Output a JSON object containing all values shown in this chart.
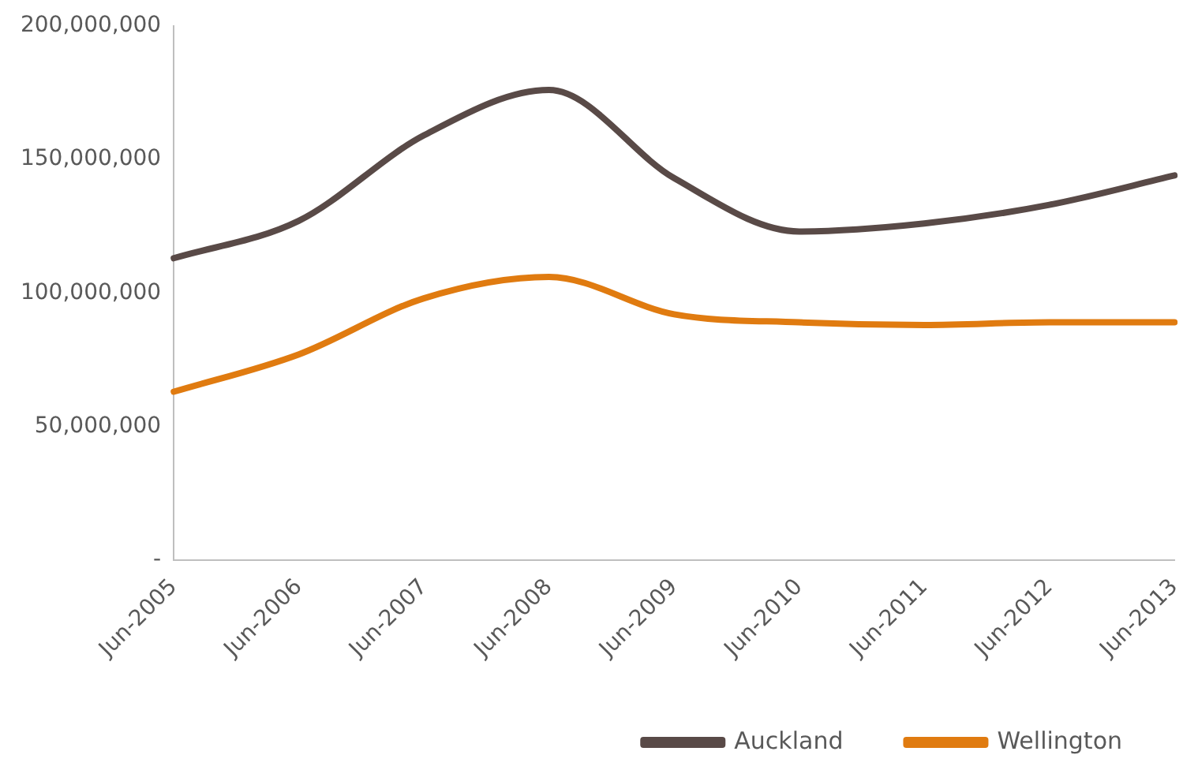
{
  "chart_data": {
    "type": "line",
    "categories": [
      "Jun-2005",
      "Jun-2006",
      "Jun-2007",
      "Jun-2008",
      "Jun-2009",
      "Jun-2010",
      "Jun-2011",
      "Jun-2012",
      "Jun-2013"
    ],
    "series": [
      {
        "name": "Auckland",
        "color": "#594a47",
        "values": [
          113000000,
          127000000,
          159000000,
          176000000,
          143000000,
          123000000,
          126000000,
          133000000,
          144000000
        ]
      },
      {
        "name": "Wellington",
        "color": "#e07b10",
        "values": [
          63000000,
          77000000,
          98000000,
          106000000,
          92000000,
          89000000,
          88000000,
          89000000,
          89000000
        ]
      }
    ],
    "ylim": [
      0,
      200000000
    ],
    "yticks": [
      {
        "value": 0,
        "label": "-"
      },
      {
        "value": 50000000,
        "label": "50,000,000"
      },
      {
        "value": 100000000,
        "label": "100,000,000"
      },
      {
        "value": 150000000,
        "label": "150,000,000"
      },
      {
        "value": 200000000,
        "label": "200,000,000"
      }
    ],
    "grid": false,
    "legend": "bottom",
    "marker": "none",
    "line_style": "solid"
  }
}
